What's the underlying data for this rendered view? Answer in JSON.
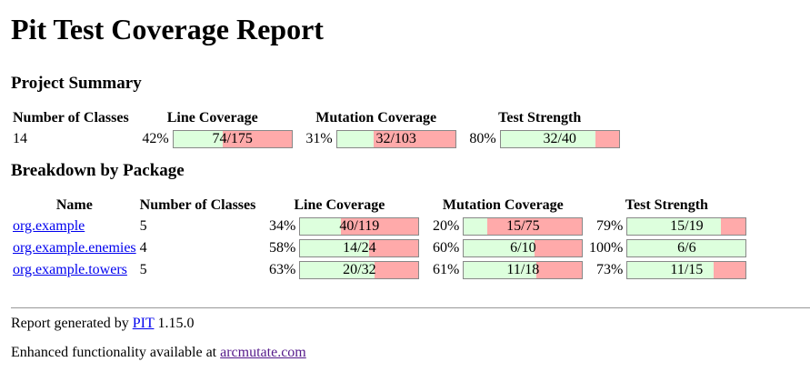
{
  "title": "Pit Test Coverage Report",
  "project_summary": {
    "heading": "Project Summary",
    "headers": {
      "classes": "Number of Classes",
      "line": "Line Coverage",
      "mutation": "Mutation Coverage",
      "strength": "Test Strength"
    },
    "row": {
      "classes": "14",
      "line": {
        "pct": "42%",
        "legend": "74/175",
        "fraction": 0.42
      },
      "mutation": {
        "pct": "31%",
        "legend": "32/103",
        "fraction": 0.31
      },
      "strength": {
        "pct": "80%",
        "legend": "32/40",
        "fraction": 0.8
      }
    }
  },
  "breakdown": {
    "heading": "Breakdown by Package",
    "headers": {
      "name": "Name",
      "classes": "Number of Classes",
      "line": "Line Coverage",
      "mutation": "Mutation Coverage",
      "strength": "Test Strength"
    },
    "rows": [
      {
        "name": "org.example",
        "classes": "5",
        "line": {
          "pct": "34%",
          "legend": "40/119",
          "fraction": 0.34
        },
        "mutation": {
          "pct": "20%",
          "legend": "15/75",
          "fraction": 0.2
        },
        "strength": {
          "pct": "79%",
          "legend": "15/19",
          "fraction": 0.79
        }
      },
      {
        "name": "org.example.enemies",
        "classes": "4",
        "line": {
          "pct": "58%",
          "legend": "14/24",
          "fraction": 0.58
        },
        "mutation": {
          "pct": "60%",
          "legend": "6/10",
          "fraction": 0.6
        },
        "strength": {
          "pct": "100%",
          "legend": "6/6",
          "fraction": 1.0
        }
      },
      {
        "name": "org.example.towers",
        "classes": "5",
        "line": {
          "pct": "63%",
          "legend": "20/32",
          "fraction": 0.63
        },
        "mutation": {
          "pct": "61%",
          "legend": "11/18",
          "fraction": 0.61
        },
        "strength": {
          "pct": "73%",
          "legend": "11/15",
          "fraction": 0.73
        }
      }
    ]
  },
  "footer": {
    "generated_prefix": "Report generated by",
    "pit_link": "PIT",
    "version": "1.15.0",
    "enhanced_prefix": "Enhanced functionality available at",
    "arcmutate_link": "arcmutate.com"
  },
  "colors": {
    "covered": "#ddffdd",
    "uncovered": "#ffaaaa",
    "link": "#0000ee",
    "visited_link": "#551a8b"
  }
}
